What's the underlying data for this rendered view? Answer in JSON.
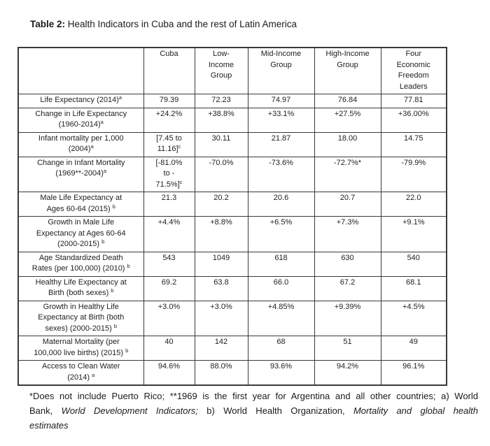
{
  "document": {
    "title": {
      "prefix": "Table 2:",
      "rest": " Health Indicators in Cuba and the rest of Latin America"
    }
  },
  "colors": {
    "background": "#ffffff",
    "text": "#1e1e1e",
    "table_border": "#3a3a3a"
  },
  "table": {
    "columns": [
      {
        "key": "indicator",
        "header_lines": []
      },
      {
        "key": "cuba",
        "header_lines": [
          "Cuba"
        ]
      },
      {
        "key": "low-income-group",
        "header_lines": [
          "Low-",
          "Income",
          "Group"
        ]
      },
      {
        "key": "mid-income-group",
        "header_lines": [
          "Mid-Income",
          "Group"
        ]
      },
      {
        "key": "high-income-group",
        "header_lines": [
          "High-Income",
          "Group"
        ]
      },
      {
        "key": "four-economic-freedom-leaders",
        "header_lines": [
          "Four",
          "Economic",
          "Freedom",
          "Leaders"
        ]
      }
    ],
    "rows": [
      {
        "label_lines": [
          "Life Expectancy (2014)^a"
        ],
        "cells": [
          [
            "79.39"
          ],
          [
            "72.23"
          ],
          [
            "74.97"
          ],
          [
            "76.84"
          ],
          [
            "77.81"
          ]
        ]
      },
      {
        "label_lines": [
          "Change in Life Expectancy",
          "(1960-2014)^a"
        ],
        "cells": [
          [
            "+24.2%"
          ],
          [
            "+38.8%"
          ],
          [
            "+33.1%"
          ],
          [
            "+27.5%"
          ],
          [
            "+36.00%"
          ]
        ]
      },
      {
        "label_lines": [
          "Infant mortality per 1,000",
          "(2004)^a"
        ],
        "cells": [
          [
            "[7.45 to",
            "11.16]^c"
          ],
          [
            "30.11"
          ],
          [
            "21.87"
          ],
          [
            "18.00"
          ],
          [
            "14.75"
          ]
        ]
      },
      {
        "label_lines": [
          "Change in Infant Mortality",
          "(1969**-2004)^a"
        ],
        "cells": [
          [
            "[-81.0%",
            "to -",
            "71.5%]^c"
          ],
          [
            "-70.0%"
          ],
          [
            "-73.6%"
          ],
          [
            "-72.7%*"
          ],
          [
            "-79.9%"
          ]
        ]
      },
      {
        "label_lines": [
          "Male Life Expectancy at",
          "Ages 60-64 (2015) ^b"
        ],
        "cells": [
          [
            "21.3"
          ],
          [
            "20.2"
          ],
          [
            "20.6"
          ],
          [
            "20.7"
          ],
          [
            "22.0"
          ]
        ]
      },
      {
        "label_lines": [
          "Growth in Male Life",
          "Expectancy at Ages 60-64",
          "(2000-2015) ^b"
        ],
        "cells": [
          [
            "+4.4%"
          ],
          [
            "+8.8%"
          ],
          [
            "+6.5%"
          ],
          [
            "+7.3%"
          ],
          [
            "+9.1%"
          ]
        ]
      },
      {
        "label_lines": [
          "Age Standardized Death",
          "Rates (per 100,000) (2010) ^b"
        ],
        "cells": [
          [
            "543"
          ],
          [
            "1049"
          ],
          [
            "618"
          ],
          [
            "630"
          ],
          [
            "540"
          ]
        ]
      },
      {
        "label_lines": [
          "Healthy Life Expectancy at",
          "Birth (both sexes) ^b"
        ],
        "cells": [
          [
            "69.2"
          ],
          [
            "63.8"
          ],
          [
            "66.0"
          ],
          [
            "67.2"
          ],
          [
            "68.1"
          ]
        ]
      },
      {
        "label_lines": [
          "Growth in Healthy Life",
          "Expectancy at Birth (both",
          "sexes) (2000-2015) ^b"
        ],
        "cells": [
          [
            "+3.0%"
          ],
          [
            "+3.0%"
          ],
          [
            "+4.85%"
          ],
          [
            "+9.39%"
          ],
          [
            "+4.5%"
          ]
        ]
      },
      {
        "label_lines": [
          "Maternal Mortality (per",
          "100,000 live births) (2015) ^b"
        ],
        "cells": [
          [
            "40"
          ],
          [
            "142"
          ],
          [
            "68"
          ],
          [
            "51"
          ],
          [
            "49"
          ]
        ]
      },
      {
        "label_lines": [
          "Access to Clean Water",
          "(2014) ^a"
        ],
        "cells": [
          [
            "94.6%"
          ],
          [
            "88.0%"
          ],
          [
            "93.6%"
          ],
          [
            "94.2%"
          ],
          [
            "96.1%"
          ]
        ]
      }
    ]
  },
  "footnote": {
    "lines": [
      {
        "justify": true,
        "segments": [
          {
            "text": "*Does not include Puerto Rico; **1969 is the first year for Argentina and all other countries; a) World",
            "italic": false
          }
        ]
      },
      {
        "justify": true,
        "segments": [
          {
            "text": "Bank, ",
            "italic": false
          },
          {
            "text": "World Development Indicators;",
            "italic": true
          },
          {
            "text": " b) World Health Organization, ",
            "italic": false
          },
          {
            "text": "Mortality and global health",
            "italic": true
          }
        ]
      },
      {
        "justify": false,
        "segments": [
          {
            "text": "estimates",
            "italic": true
          }
        ]
      }
    ]
  }
}
